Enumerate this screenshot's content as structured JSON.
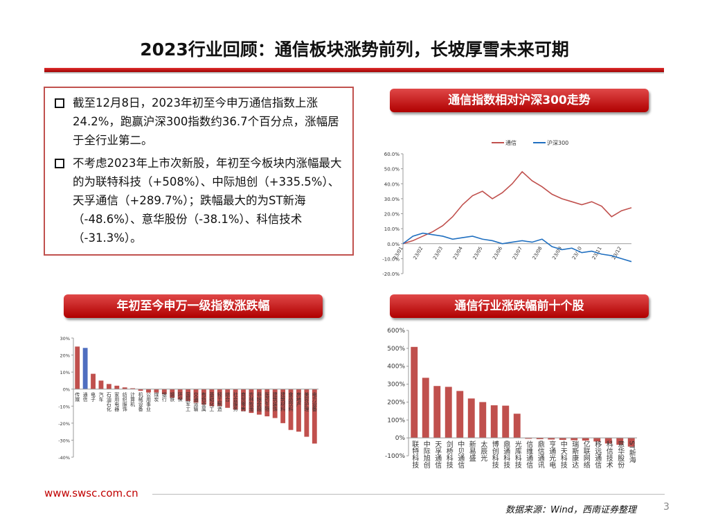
{
  "header": {
    "title": "2023行业回顾：通信板块涨势前列，长坡厚雪未来可期"
  },
  "summary": [
    "截至12月8日，2023年初至今申万通信指数上涨24.2%，跑赢沪深300指数约36.7个百分点，涨幅居于全行业第二。",
    "不考虑2023年上市次新股，年初至今板块内涨幅最大的为联特科技（+508%）、中际旭创（+335.5%）、天孚通信（+289.7%）；跌幅最大的为ST新海（-48.6%）、意华股份（-38.1%）、科信技术（-31.3%）。"
  ],
  "chart_data": [
    {
      "type": "line",
      "title": "通信指数相对沪深300走势",
      "categories": [
        "23/01",
        null,
        "23/02",
        null,
        "23/03",
        null,
        "23/04",
        null,
        "23/05",
        null,
        "23/06",
        null,
        "23/07",
        null,
        "23/08",
        null,
        "23/09",
        null,
        "23/10",
        null,
        "23/11",
        null,
        "23/12",
        null
      ],
      "series": [
        {
          "name": "通信",
          "color": "#c0504d",
          "values": [
            0,
            2,
            5,
            8,
            12,
            18,
            26,
            32,
            35,
            30,
            34,
            40,
            48,
            42,
            38,
            33,
            30,
            28,
            26,
            28,
            25,
            18,
            22,
            24
          ]
        },
        {
          "name": "沪深300",
          "color": "#1f6fc0",
          "values": [
            0,
            5,
            7,
            6,
            5,
            3,
            4,
            5,
            3,
            2,
            0,
            1,
            2,
            1,
            3,
            -2,
            -4,
            -3,
            -6,
            -5,
            -7,
            -8,
            -10,
            -12
          ]
        }
      ],
      "ylim": [
        -20,
        60
      ],
      "yticks": [
        {
          "value": -20,
          "label": "-20.0%"
        },
        {
          "value": -10,
          "label": "-10.0%"
        },
        {
          "value": 0,
          "label": "0.0%"
        },
        {
          "value": 10,
          "label": "10.0%"
        },
        {
          "value": 20,
          "label": "20.0%"
        },
        {
          "value": 30,
          "label": "30.0%"
        },
        {
          "value": 40,
          "label": "40.0%"
        },
        {
          "value": 50,
          "label": "50.0%"
        },
        {
          "value": 60,
          "label": "60.0%"
        }
      ],
      "legend": "top"
    },
    {
      "type": "bar",
      "title": "年初至今申万一级指数涨跌幅",
      "categories": [
        "传媒",
        "通信",
        "电子",
        "汽车",
        "石油石化",
        "家用电器",
        "纺织服饰",
        "计算机",
        "机械设备",
        "公用事业",
        "煤炭",
        "银行",
        "钢铁",
        "环保",
        "国防军工",
        "交通运输",
        "有色金属",
        "基础化工",
        "轻工制造",
        "综合",
        "社会服务",
        "商贸零售",
        "农林牧渔",
        "非银金融",
        "医药生物",
        "建筑装饰",
        "建筑材料",
        "食品饮料",
        "房地产",
        "美容护理",
        "电力设备"
      ],
      "values": [
        25,
        24.2,
        9,
        5,
        3,
        2,
        1,
        0.5,
        -1,
        -2,
        -2,
        -3,
        -5,
        -6,
        -7,
        -8,
        -9,
        -10,
        -10,
        -11,
        -12,
        -13,
        -14,
        -15,
        -16,
        -17,
        -20,
        -24,
        -25,
        -28,
        -32
      ],
      "color": "#c0504d",
      "colors": [
        "#c0504d",
        "#4f6fc0",
        "#c0504d",
        "#c0504d",
        "#c0504d",
        "#c0504d",
        "#c0504d",
        "#c0504d",
        "#c0504d",
        "#c0504d",
        "#c0504d",
        "#c0504d",
        "#c0504d",
        "#c0504d",
        "#c0504d",
        "#c0504d",
        "#c0504d",
        "#c0504d",
        "#c0504d",
        "#c0504d",
        "#c0504d",
        "#c0504d",
        "#c0504d",
        "#c0504d",
        "#c0504d",
        "#c0504d",
        "#c0504d",
        "#c0504d",
        "#c0504d",
        "#c0504d",
        "#c0504d"
      ],
      "ylim": [
        -40,
        30
      ],
      "yticks": [
        {
          "value": -40,
          "label": "-40%"
        },
        {
          "value": -30,
          "label": "-30%"
        },
        {
          "value": -20,
          "label": "-20%"
        },
        {
          "value": -10,
          "label": "-10%"
        },
        {
          "value": 0,
          "label": "0%"
        },
        {
          "value": 10,
          "label": "10%"
        },
        {
          "value": 20,
          "label": "20%"
        },
        {
          "value": 30,
          "label": "30%"
        }
      ]
    },
    {
      "type": "bar",
      "title": "通信行业涨跌幅前十个股",
      "categories": [
        "联特科技",
        "中际旭创",
        "天孚通信",
        "剑桥科技",
        "中贝通信",
        "新易盛",
        "太辰光",
        "博创科技",
        "鼎通科技",
        "光库科技",
        "信维通信",
        "鼎信通讯",
        "亨通光电",
        "中天科技",
        "瑞斯康达",
        "亿联网络",
        "移远通信",
        "科信技术",
        "意华股份",
        "ST新海"
      ],
      "values": [
        508,
        335.5,
        289.7,
        285,
        262,
        220,
        200,
        182,
        180,
        135,
        -5,
        -7,
        -9,
        -11,
        -13,
        -15,
        -20,
        -31.3,
        -38.1,
        -48.6
      ],
      "color": "#c0504d",
      "ylim": [
        -100,
        600
      ],
      "yticks": [
        {
          "value": -100,
          "label": "-100%"
        },
        {
          "value": 0,
          "label": "0%"
        },
        {
          "value": 100,
          "label": "100%"
        },
        {
          "value": 200,
          "label": "200%"
        },
        {
          "value": 300,
          "label": "300%"
        },
        {
          "value": 400,
          "label": "400%"
        },
        {
          "value": 500,
          "label": "500%"
        },
        {
          "value": 600,
          "label": "600%"
        }
      ]
    }
  ],
  "footer": {
    "url": "www.swsc.com.cn",
    "source": "数据来源：Wind，西南证券整理",
    "page": "3"
  }
}
